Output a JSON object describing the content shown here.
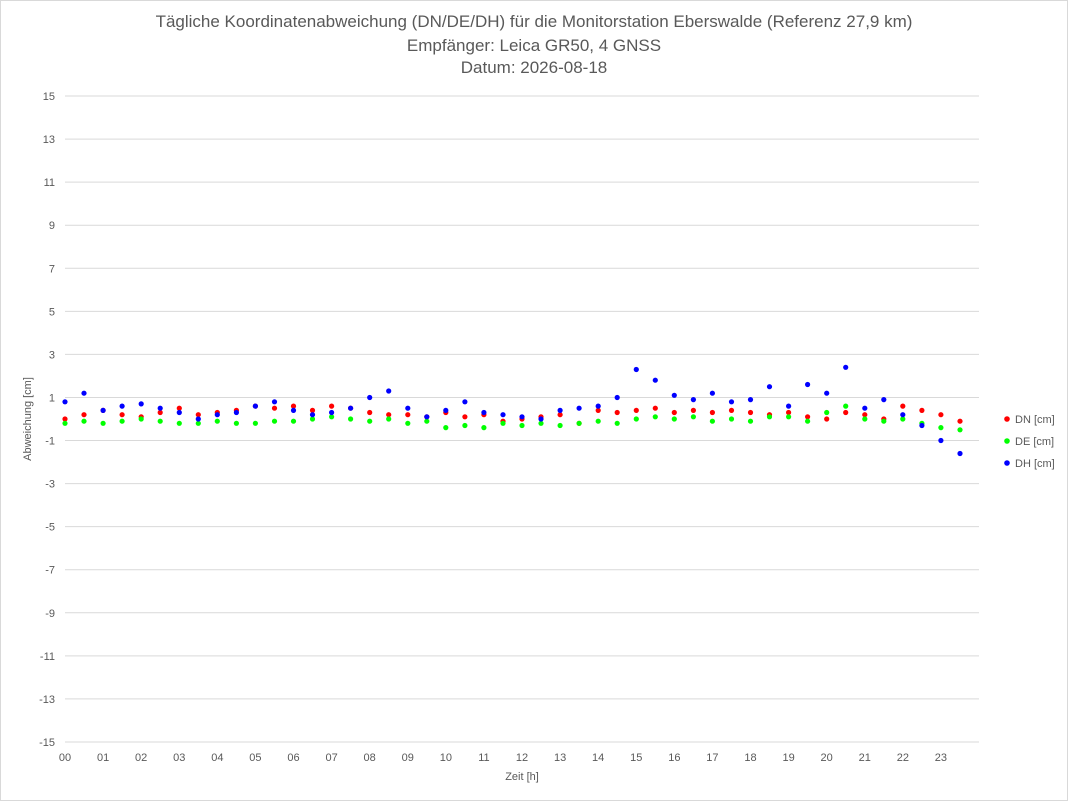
{
  "chart_data": {
    "type": "scatter",
    "title": "Tägliche Koordinatenabweichung (DN/DE/DH) für die Monitorstation Eberswalde (Referenz 27,9 km)",
    "subtitle": "Empfänger: Leica GR50, 4 GNSS",
    "subtitle2": "Datum: 2026-08-18",
    "xlabel": "Zeit [h]",
    "ylabel": "Abweichung [cm]",
    "xlim": [
      0,
      24
    ],
    "ylim": [
      -15,
      15
    ],
    "x_ticks": [
      "00",
      "01",
      "02",
      "03",
      "04",
      "05",
      "06",
      "07",
      "08",
      "09",
      "10",
      "11",
      "12",
      "13",
      "14",
      "15",
      "16",
      "17",
      "18",
      "19",
      "20",
      "21",
      "22",
      "23"
    ],
    "y_ticks": [
      15,
      13,
      11,
      9,
      7,
      5,
      3,
      1,
      -1,
      -3,
      -5,
      -7,
      -9,
      -11,
      -13,
      -15
    ],
    "grid": "horizontal",
    "legend_position": "right",
    "series": [
      {
        "name": "DN [cm]",
        "color": "#ff0000",
        "x": [
          0.0,
          0.5,
          1.0,
          1.5,
          2.0,
          2.5,
          3.0,
          3.5,
          4.0,
          4.5,
          5.0,
          5.5,
          6.0,
          6.5,
          7.0,
          7.5,
          8.0,
          8.5,
          9.0,
          9.5,
          10.0,
          10.5,
          11.0,
          11.5,
          12.0,
          12.5,
          13.0,
          13.5,
          14.0,
          14.5,
          15.0,
          15.5,
          16.0,
          16.5,
          17.0,
          17.5,
          18.0,
          18.5,
          19.0,
          19.5,
          20.0,
          20.5,
          21.0,
          21.5,
          22.0,
          22.5,
          23.0,
          23.5
        ],
        "y": [
          0.0,
          0.2,
          0.4,
          0.2,
          0.1,
          0.3,
          0.5,
          0.2,
          0.3,
          0.4,
          0.6,
          0.5,
          0.6,
          0.4,
          0.6,
          0.5,
          0.3,
          0.2,
          0.2,
          0.1,
          0.3,
          0.1,
          0.2,
          -0.1,
          0.0,
          0.1,
          0.2,
          -0.2,
          0.4,
          0.3,
          0.4,
          0.5,
          0.3,
          0.4,
          0.3,
          0.4,
          0.3,
          0.2,
          0.3,
          0.1,
          0.0,
          0.3,
          0.2,
          0.0,
          0.6,
          0.4,
          0.2,
          -0.1
        ]
      },
      {
        "name": "DE [cm]",
        "color": "#00ff00",
        "x": [
          0.0,
          0.5,
          1.0,
          1.5,
          2.0,
          2.5,
          3.0,
          3.5,
          4.0,
          4.5,
          5.0,
          5.5,
          6.0,
          6.5,
          7.0,
          7.5,
          8.0,
          8.5,
          9.0,
          9.5,
          10.0,
          10.5,
          11.0,
          11.5,
          12.0,
          12.5,
          13.0,
          13.5,
          14.0,
          14.5,
          15.0,
          15.5,
          16.0,
          16.5,
          17.0,
          17.5,
          18.0,
          18.5,
          19.0,
          19.5,
          20.0,
          20.5,
          21.0,
          21.5,
          22.0,
          22.5,
          23.0,
          23.5
        ],
        "y": [
          -0.2,
          -0.1,
          -0.2,
          -0.1,
          0.0,
          -0.1,
          -0.2,
          -0.2,
          -0.1,
          -0.2,
          -0.2,
          -0.1,
          -0.1,
          0.0,
          0.1,
          0.0,
          -0.1,
          0.0,
          -0.2,
          -0.1,
          -0.4,
          -0.3,
          -0.4,
          -0.2,
          -0.3,
          -0.2,
          -0.3,
          -0.2,
          -0.1,
          -0.2,
          0.0,
          0.1,
          0.0,
          0.1,
          -0.1,
          0.0,
          -0.1,
          0.1,
          0.1,
          -0.1,
          0.3,
          0.6,
          0.0,
          -0.1,
          0.0,
          -0.2,
          -0.4,
          -0.5
        ]
      },
      {
        "name": "DH [cm]",
        "color": "#0000ff",
        "x": [
          0.0,
          0.5,
          1.0,
          1.5,
          2.0,
          2.5,
          3.0,
          3.5,
          4.0,
          4.5,
          5.0,
          5.5,
          6.0,
          6.5,
          7.0,
          7.5,
          8.0,
          8.5,
          9.0,
          9.5,
          10.0,
          10.5,
          11.0,
          11.5,
          12.0,
          12.5,
          13.0,
          13.5,
          14.0,
          14.5,
          15.0,
          15.5,
          16.0,
          16.5,
          17.0,
          17.5,
          18.0,
          18.5,
          19.0,
          19.5,
          20.0,
          20.5,
          21.0,
          21.5,
          22.0,
          22.5,
          23.0,
          23.5
        ],
        "y": [
          0.8,
          1.2,
          0.4,
          0.6,
          0.7,
          0.5,
          0.3,
          0.0,
          0.2,
          0.3,
          0.6,
          0.8,
          0.4,
          0.2,
          0.3,
          0.5,
          1.0,
          1.3,
          0.5,
          0.1,
          0.4,
          0.8,
          0.3,
          0.2,
          0.1,
          0.0,
          0.4,
          0.5,
          0.6,
          1.0,
          2.3,
          1.8,
          1.1,
          0.9,
          1.2,
          0.8,
          0.9,
          1.5,
          0.6,
          1.6,
          1.2,
          2.4,
          0.5,
          0.9,
          0.2,
          -0.3,
          -1.0,
          -1.6
        ]
      }
    ]
  }
}
